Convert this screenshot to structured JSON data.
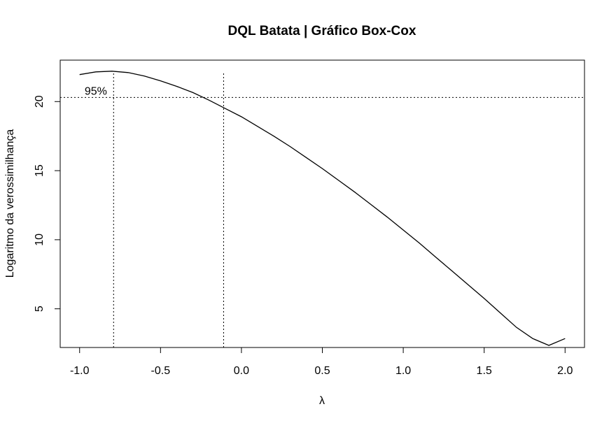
{
  "chart_data": {
    "type": "line",
    "title": "DQL Batata | Gráfico Box-Cox",
    "xlabel": "λ",
    "ylabel": "Logaritmo da verossimilhança",
    "xlim": [
      -1.12,
      2.12
    ],
    "ylim": [
      2.2,
      23.0
    ],
    "x_ticks": [
      -1.0,
      -0.5,
      0.0,
      0.5,
      1.0,
      1.5,
      2.0
    ],
    "x_tick_labels": [
      "-1.0",
      "-0.5",
      "0.0",
      "0.5",
      "1.0",
      "1.5",
      "2.0"
    ],
    "y_ticks": [
      5,
      10,
      15,
      20
    ],
    "y_tick_labels": [
      "5",
      "10",
      "15",
      "20"
    ],
    "series": [
      {
        "x": [
          -1.0,
          -0.9,
          -0.8,
          -0.7,
          -0.6,
          -0.5,
          -0.4,
          -0.3,
          -0.2,
          -0.1,
          0.0,
          0.1,
          0.2,
          0.3,
          0.4,
          0.5,
          0.6,
          0.7,
          0.8,
          0.9,
          1.0,
          1.1,
          1.2,
          1.3,
          1.4,
          1.5,
          1.6,
          1.7,
          1.8,
          1.9,
          2.0
        ],
        "y": [
          21.95,
          22.15,
          22.2,
          22.1,
          21.85,
          21.5,
          21.1,
          20.65,
          20.1,
          19.5,
          18.9,
          18.2,
          17.5,
          16.75,
          15.95,
          15.15,
          14.3,
          13.45,
          12.55,
          11.65,
          10.7,
          9.75,
          8.75,
          7.75,
          6.75,
          5.75,
          4.7,
          3.65,
          2.85,
          2.35,
          2.85
        ]
      }
    ],
    "annotations": [
      {
        "text": "95%",
        "x": -0.9,
        "y": 20.8
      }
    ],
    "reference_lines": {
      "horizontal_y": 20.3,
      "vertical_x": [
        -0.79,
        -0.11
      ]
    },
    "grid": false,
    "legend": "none"
  }
}
